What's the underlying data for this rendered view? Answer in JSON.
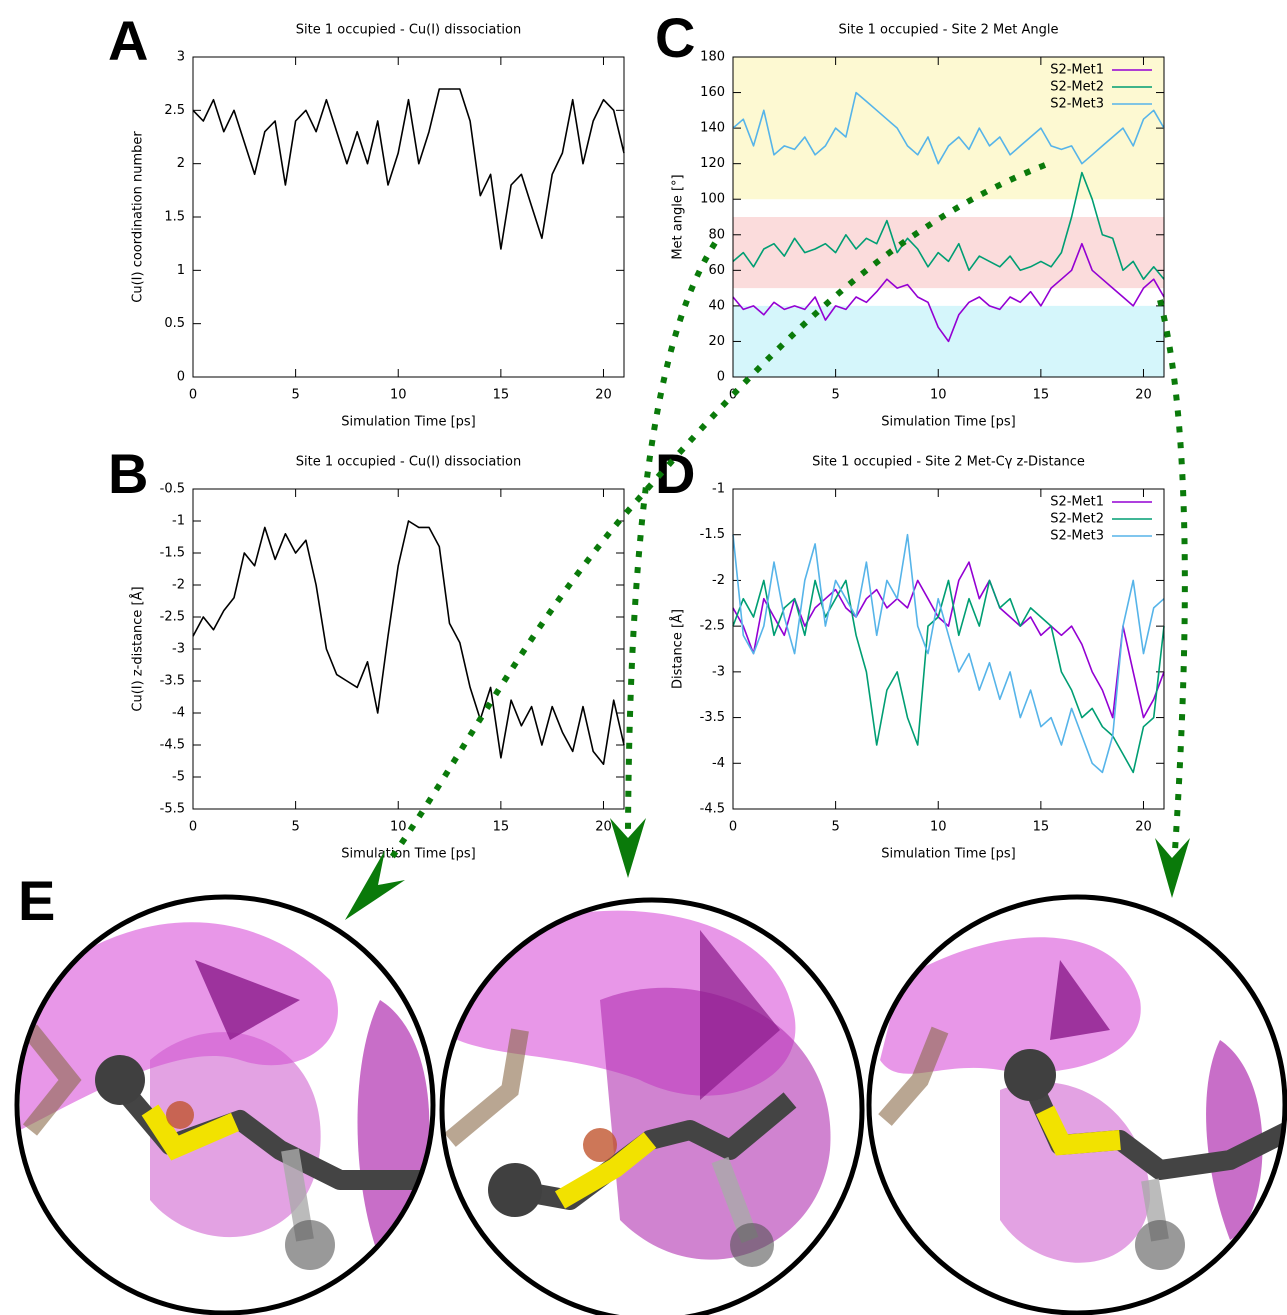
{
  "chart_data": [
    {
      "type": "line",
      "panel": "A",
      "title": "Site 1 occupied - Cu(I) dissociation",
      "xlabel": "Simulation Time [ps]",
      "ylabel": "Cu(I) coordination number",
      "x": [
        0,
        0.5,
        1,
        1.5,
        2,
        2.5,
        3,
        3.5,
        4,
        4.5,
        5,
        5.5,
        6,
        6.5,
        7,
        7.5,
        8,
        8.5,
        9,
        9.5,
        10,
        10.5,
        11,
        11.5,
        12,
        12.5,
        13,
        13.5,
        14,
        14.5,
        15,
        15.5,
        16,
        16.5,
        17,
        17.5,
        18,
        18.5,
        19,
        19.5,
        20,
        20.5,
        21
      ],
      "color": "#000000",
      "values": [
        2.5,
        2.4,
        2.6,
        2.3,
        2.5,
        2.2,
        1.9,
        2.3,
        2.4,
        1.8,
        2.4,
        2.5,
        2.3,
        2.6,
        2.3,
        2.0,
        2.3,
        2.0,
        2.4,
        1.8,
        2.1,
        2.6,
        2.0,
        2.3,
        2.7,
        2.7,
        2.7,
        2.4,
        1.7,
        1.9,
        1.2,
        1.8,
        1.9,
        1.6,
        1.3,
        1.9,
        2.1,
        2.6,
        2.0,
        2.4,
        2.6,
        2.5,
        2.1
      ],
      "xlim": [
        0,
        21
      ],
      "xticks": [
        0,
        5,
        10,
        15,
        20
      ],
      "ylim": [
        0,
        3
      ],
      "yticks": [
        0,
        0.5,
        1,
        1.5,
        2,
        2.5,
        3
      ]
    },
    {
      "type": "line",
      "panel": "B",
      "title": "Site 1 occupied - Cu(I) dissociation",
      "xlabel": "Simulation Time [ps]",
      "ylabel": "Cu(I) z-distance [Å]",
      "x": [
        0,
        0.5,
        1,
        1.5,
        2,
        2.5,
        3,
        3.5,
        4,
        4.5,
        5,
        5.5,
        6,
        6.5,
        7,
        7.5,
        8,
        8.5,
        9,
        9.5,
        10,
        10.5,
        11,
        11.5,
        12,
        12.5,
        13,
        13.5,
        14,
        14.5,
        15,
        15.5,
        16,
        16.5,
        17,
        17.5,
        18,
        18.5,
        19,
        19.5,
        20,
        20.5,
        21
      ],
      "color": "#000000",
      "values": [
        -2.8,
        -2.5,
        -2.7,
        -2.4,
        -2.2,
        -1.5,
        -1.7,
        -1.1,
        -1.6,
        -1.2,
        -1.5,
        -1.3,
        -2.0,
        -3.0,
        -3.4,
        -3.5,
        -3.6,
        -3.2,
        -4.0,
        -2.8,
        -1.7,
        -1.0,
        -1.1,
        -1.1,
        -1.4,
        -2.6,
        -2.9,
        -3.6,
        -4.1,
        -3.6,
        -4.7,
        -3.8,
        -4.2,
        -3.9,
        -4.5,
        -3.9,
        -4.3,
        -4.6,
        -3.9,
        -4.6,
        -4.8,
        -3.8,
        -4.5
      ],
      "xlim": [
        0,
        21
      ],
      "xticks": [
        0,
        5,
        10,
        15,
        20
      ],
      "ylim": [
        -5.5,
        -0.5
      ],
      "yticks": [
        -5.5,
        -5,
        -4.5,
        -4,
        -3.5,
        -3,
        -2.5,
        -2,
        -1.5,
        -1,
        -0.5
      ]
    },
    {
      "type": "line",
      "panel": "C",
      "title": "Site 1 occupied - Site 2 Met Angle",
      "xlabel": "Simulation Time [ps]",
      "ylabel": "Met angle [°]",
      "x": [
        0,
        0.5,
        1,
        1.5,
        2,
        2.5,
        3,
        3.5,
        4,
        4.5,
        5,
        5.5,
        6,
        6.5,
        7,
        7.5,
        8,
        8.5,
        9,
        9.5,
        10,
        10.5,
        11,
        11.5,
        12,
        12.5,
        13,
        13.5,
        14,
        14.5,
        15,
        15.5,
        16,
        16.5,
        17,
        17.5,
        18,
        18.5,
        19,
        19.5,
        20,
        20.5,
        21
      ],
      "bands": [
        {
          "from": 100,
          "to": 180,
          "color": "#fdf9d2"
        },
        {
          "from": 50,
          "to": 90,
          "color": "#fbdcdc"
        },
        {
          "from": 0,
          "to": 40,
          "color": "#d5f6fb"
        }
      ],
      "series": [
        {
          "name": "S2-Met1",
          "color": "#9400d3",
          "values": [
            45,
            38,
            40,
            35,
            42,
            38,
            40,
            38,
            45,
            32,
            40,
            38,
            45,
            42,
            48,
            55,
            50,
            52,
            45,
            42,
            28,
            20,
            35,
            42,
            45,
            40,
            38,
            45,
            42,
            48,
            40,
            50,
            55,
            60,
            75,
            60,
            55,
            50,
            45,
            40,
            50,
            55,
            45
          ]
        },
        {
          "name": "S2-Met2",
          "color": "#009e73",
          "values": [
            65,
            70,
            62,
            72,
            75,
            68,
            78,
            70,
            72,
            75,
            70,
            80,
            72,
            78,
            75,
            88,
            70,
            78,
            72,
            62,
            70,
            65,
            75,
            60,
            68,
            65,
            62,
            68,
            60,
            62,
            65,
            62,
            70,
            90,
            115,
            100,
            80,
            78,
            60,
            65,
            55,
            62,
            55
          ]
        },
        {
          "name": "S2-Met3",
          "color": "#56b4e9",
          "values": [
            140,
            145,
            130,
            150,
            125,
            130,
            128,
            135,
            125,
            130,
            140,
            135,
            160,
            155,
            150,
            145,
            140,
            130,
            125,
            135,
            120,
            130,
            135,
            128,
            140,
            130,
            135,
            125,
            130,
            135,
            140,
            130,
            128,
            130,
            120,
            125,
            130,
            135,
            140,
            130,
            145,
            150,
            140
          ]
        }
      ],
      "legend": "top-right",
      "xlim": [
        0,
        21
      ],
      "xticks": [
        0,
        5,
        10,
        15,
        20
      ],
      "ylim": [
        0,
        180
      ],
      "yticks": [
        0,
        20,
        40,
        60,
        80,
        100,
        120,
        140,
        160,
        180
      ]
    },
    {
      "type": "line",
      "panel": "D",
      "title": "Site 1 occupied - Site 2 Met-Cγ z-Distance",
      "xlabel": "Simulation Time [ps]",
      "ylabel": "Distance [Å]",
      "x": [
        0,
        0.5,
        1,
        1.5,
        2,
        2.5,
        3,
        3.5,
        4,
        4.5,
        5,
        5.5,
        6,
        6.5,
        7,
        7.5,
        8,
        8.5,
        9,
        9.5,
        10,
        10.5,
        11,
        11.5,
        12,
        12.5,
        13,
        13.5,
        14,
        14.5,
        15,
        15.5,
        16,
        16.5,
        17,
        17.5,
        18,
        18.5,
        19,
        19.5,
        20,
        20.5,
        21
      ],
      "series": [
        {
          "name": "S2-Met1",
          "color": "#9400d3",
          "values": [
            -2.3,
            -2.5,
            -2.8,
            -2.2,
            -2.4,
            -2.6,
            -2.2,
            -2.5,
            -2.3,
            -2.2,
            -2.1,
            -2.3,
            -2.4,
            -2.2,
            -2.1,
            -2.3,
            -2.2,
            -2.3,
            -2.0,
            -2.2,
            -2.4,
            -2.5,
            -2.0,
            -1.8,
            -2.2,
            -2.0,
            -2.3,
            -2.4,
            -2.5,
            -2.4,
            -2.6,
            -2.5,
            -2.6,
            -2.5,
            -2.7,
            -3.0,
            -3.2,
            -3.5,
            -2.5,
            -3.0,
            -3.5,
            -3.3,
            -3.0
          ]
        },
        {
          "name": "S2-Met2",
          "color": "#009e73",
          "values": [
            -2.5,
            -2.2,
            -2.4,
            -2.0,
            -2.6,
            -2.3,
            -2.2,
            -2.6,
            -2.0,
            -2.4,
            -2.2,
            -2.0,
            -2.6,
            -3.0,
            -3.8,
            -3.2,
            -3.0,
            -3.5,
            -3.8,
            -2.5,
            -2.4,
            -2.0,
            -2.6,
            -2.2,
            -2.5,
            -2.0,
            -2.3,
            -2.2,
            -2.5,
            -2.3,
            -2.4,
            -2.5,
            -3.0,
            -3.2,
            -3.5,
            -3.4,
            -3.6,
            -3.7,
            -3.9,
            -4.1,
            -3.6,
            -3.5,
            -2.5
          ]
        },
        {
          "name": "S2-Met3",
          "color": "#56b4e9",
          "values": [
            -1.5,
            -2.6,
            -2.8,
            -2.5,
            -1.8,
            -2.4,
            -2.8,
            -2.0,
            -1.6,
            -2.5,
            -2.0,
            -2.2,
            -2.4,
            -1.8,
            -2.6,
            -2.0,
            -2.2,
            -1.5,
            -2.5,
            -2.8,
            -2.2,
            -2.6,
            -3.0,
            -2.8,
            -3.2,
            -2.9,
            -3.3,
            -3.0,
            -3.5,
            -3.2,
            -3.6,
            -3.5,
            -3.8,
            -3.4,
            -3.7,
            -4.0,
            -4.1,
            -3.7,
            -2.5,
            -2.0,
            -2.8,
            -2.3,
            -2.2
          ]
        }
      ],
      "legend": "top-right",
      "xlim": [
        0,
        21
      ],
      "xticks": [
        0,
        5,
        10,
        15,
        20
      ],
      "ylim": [
        -4.5,
        -1
      ],
      "yticks": [
        -4.5,
        -4,
        -3.5,
        -3,
        -2.5,
        -2,
        -1.5,
        -1
      ]
    }
  ],
  "images": {
    "panel": "E"
  }
}
